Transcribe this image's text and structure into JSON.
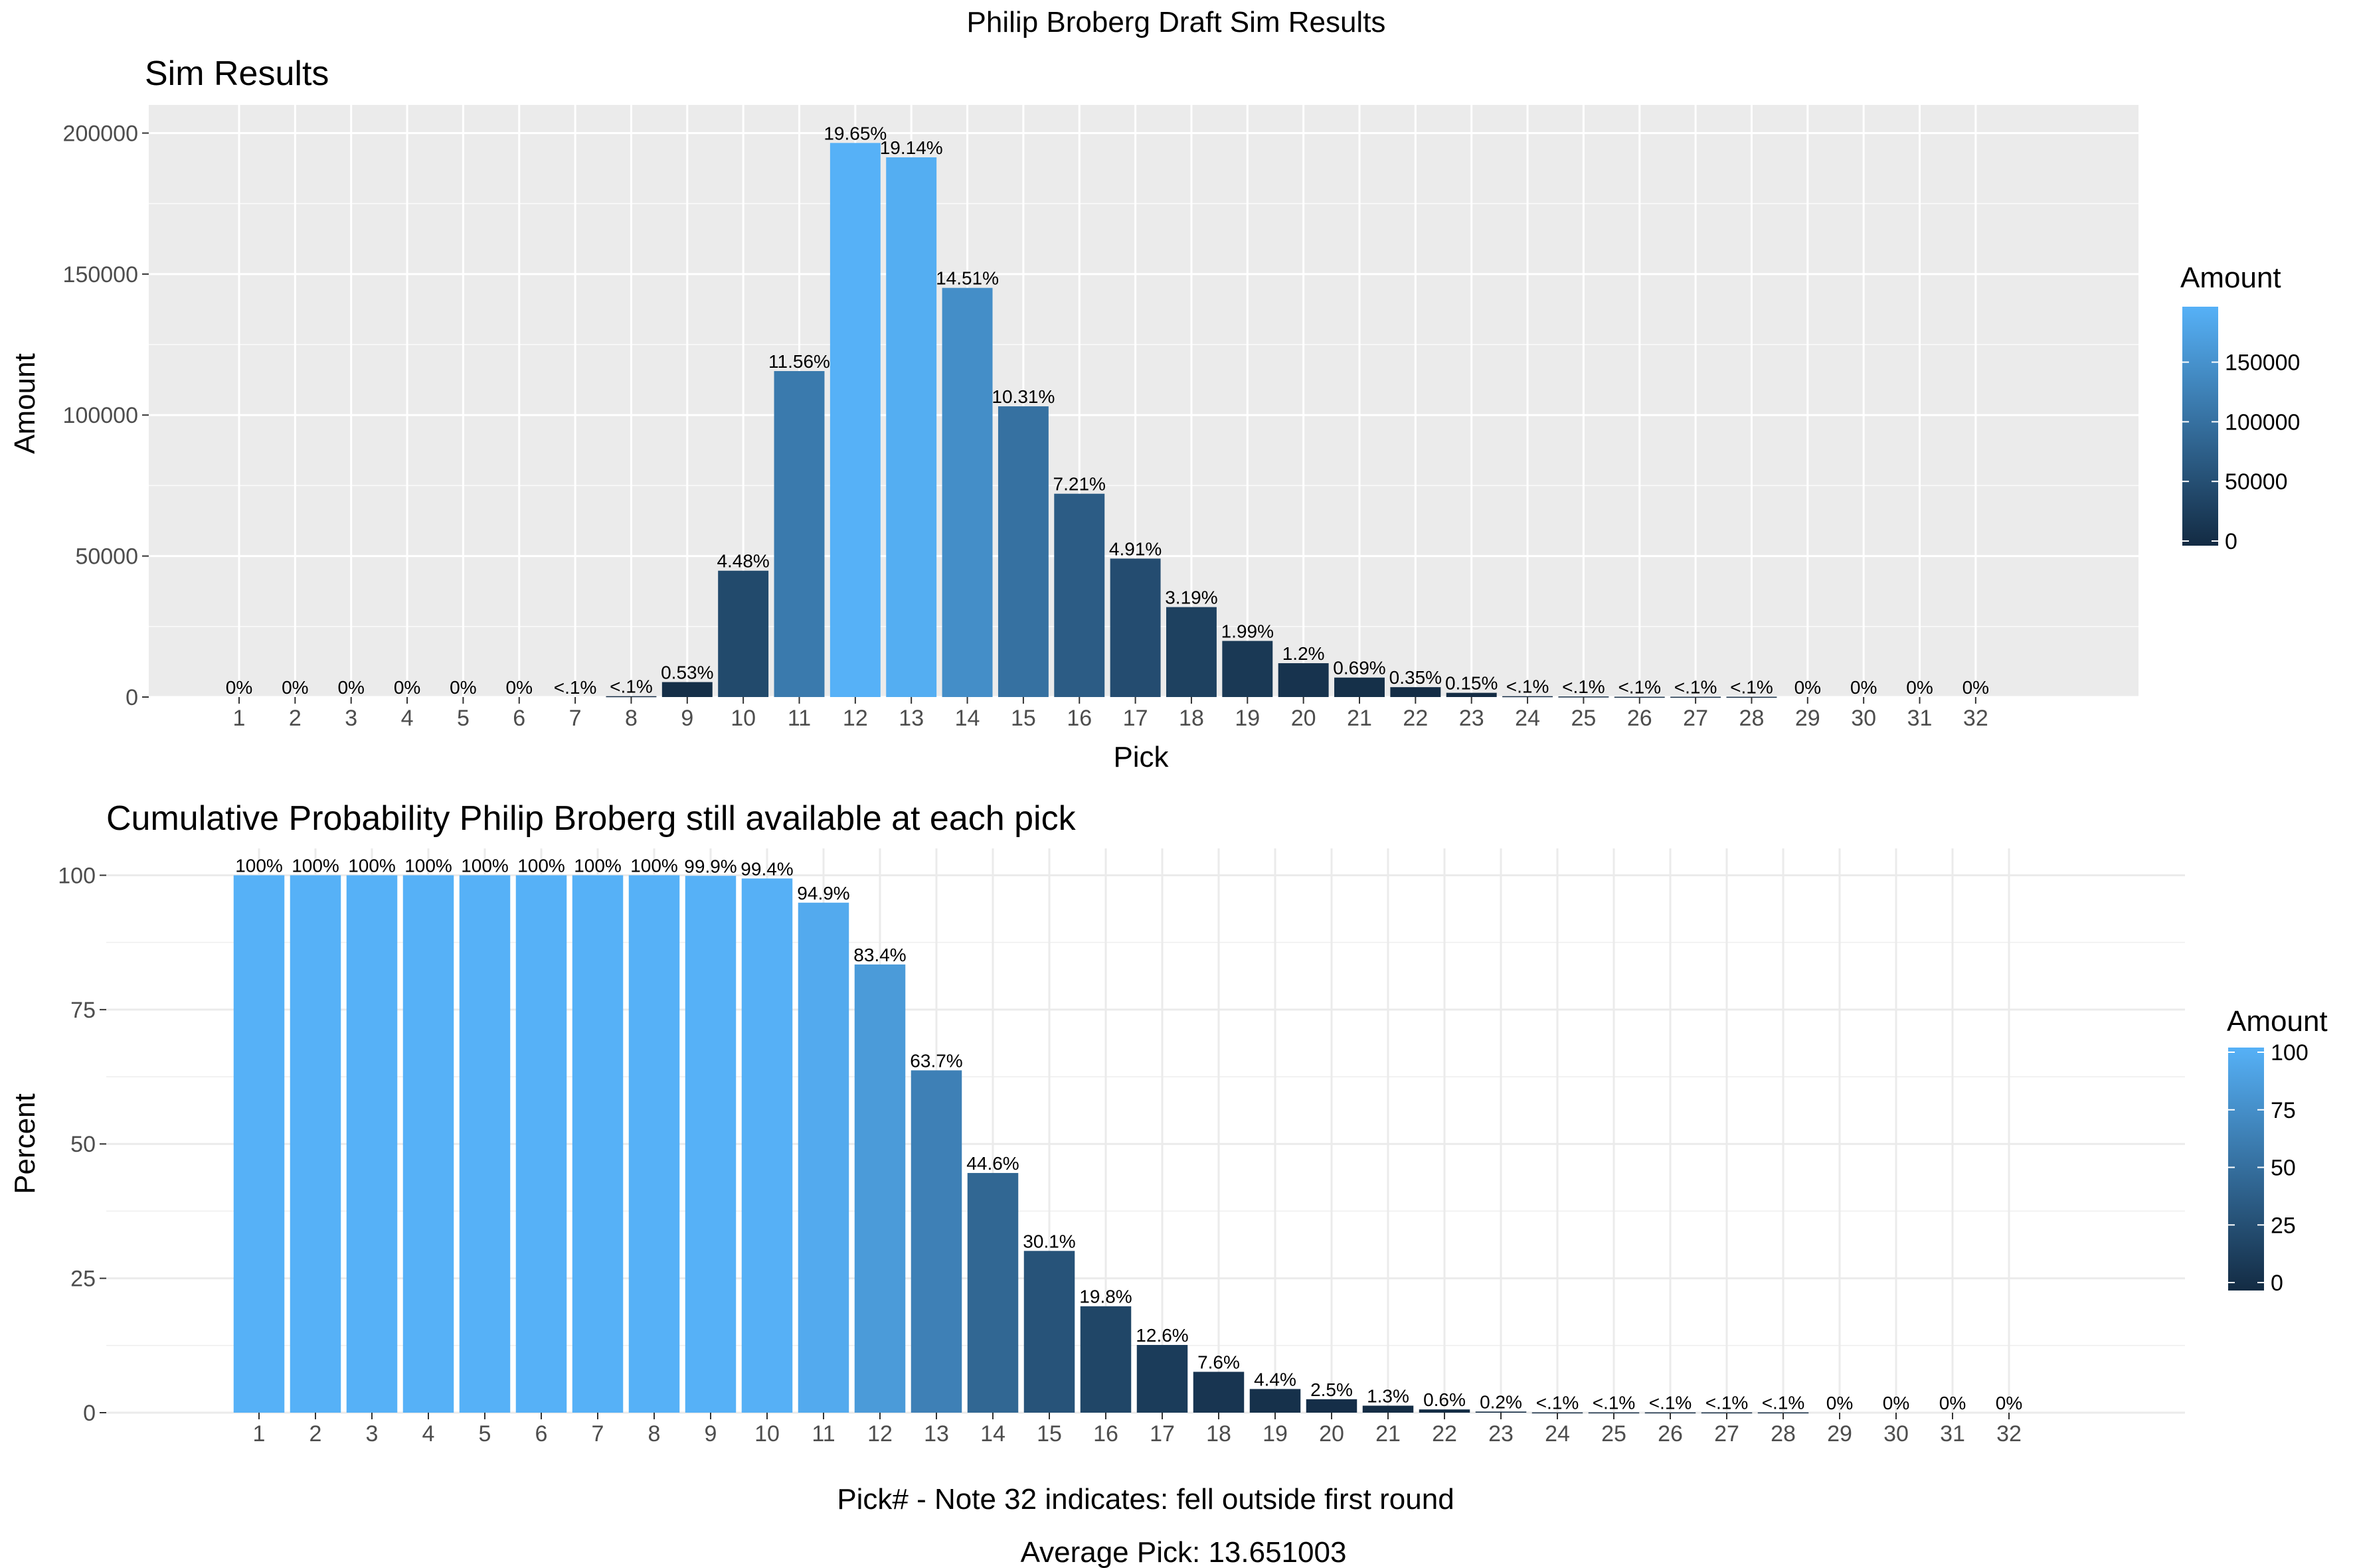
{
  "page_title": "Philip Broberg Draft Sim Results",
  "footer": "Average Pick: 13.651003",
  "colors": {
    "panel_bg": "#EBEBEB",
    "grid_major": "#FFFFFF",
    "gradient_low": "#132B43",
    "gradient_high": "#56B1F7",
    "text_dark": "#000000",
    "axis_text": "#4D4D4D"
  },
  "chart_data": [
    {
      "type": "bar",
      "title": "Sim Results",
      "xlabel": "Pick",
      "ylabel": "Amount",
      "ylim": [
        0,
        210000
      ],
      "y_ticks": [
        0,
        50000,
        100000,
        150000,
        200000
      ],
      "y_tick_labels": [
        "0",
        "50000",
        "100000",
        "150000",
        "200000"
      ],
      "background": "gray panel with white grid",
      "categories": [
        "1",
        "2",
        "3",
        "4",
        "5",
        "6",
        "7",
        "8",
        "9",
        "10",
        "11",
        "12",
        "13",
        "14",
        "15",
        "16",
        "17",
        "18",
        "19",
        "20",
        "21",
        "22",
        "23",
        "24",
        "25",
        "26",
        "27",
        "28",
        "29",
        "30",
        "31",
        "32"
      ],
      "values": [
        0,
        0,
        0,
        0,
        0,
        0,
        0,
        300,
        5300,
        44800,
        115600,
        196500,
        191400,
        145100,
        103100,
        72100,
        49100,
        31900,
        19900,
        12000,
        6900,
        3500,
        1500,
        300,
        200,
        100,
        100,
        100,
        0,
        0,
        0,
        0
      ],
      "labels": [
        "0%",
        "0%",
        "0%",
        "0%",
        "0%",
        "0%",
        "<.1%",
        "<.1%",
        "0.53%",
        "4.48%",
        "11.56%",
        "19.65%",
        "19.14%",
        "14.51%",
        "10.31%",
        "7.21%",
        "4.91%",
        "3.19%",
        "1.99%",
        "1.2%",
        "0.69%",
        "0.35%",
        "0.15%",
        "<.1%",
        "<.1%",
        "<.1%",
        "<.1%",
        "<.1%",
        "0%",
        "0%",
        "0%",
        "0%"
      ],
      "legend": {
        "title": "Amount",
        "position": "right",
        "range": [
          0,
          196500
        ],
        "ticks": [
          0,
          50000,
          100000,
          150000
        ],
        "tick_labels": [
          "0",
          "50000",
          "100000",
          "150000"
        ]
      }
    },
    {
      "type": "bar",
      "title": "Cumulative Probability Philip Broberg still available at each pick",
      "xlabel": "Pick# - Note 32 indicates: fell outside first round",
      "ylabel": "Percent",
      "ylim": [
        0,
        105
      ],
      "y_ticks": [
        0,
        25,
        50,
        75,
        100
      ],
      "y_tick_labels": [
        "0",
        "25",
        "50",
        "75",
        "100"
      ],
      "background": "white panel with light gray grid",
      "categories": [
        "1",
        "2",
        "3",
        "4",
        "5",
        "6",
        "7",
        "8",
        "9",
        "10",
        "11",
        "12",
        "13",
        "14",
        "15",
        "16",
        "17",
        "18",
        "19",
        "20",
        "21",
        "22",
        "23",
        "24",
        "25",
        "26",
        "27",
        "28",
        "29",
        "30",
        "31",
        "32"
      ],
      "values": [
        100,
        100,
        100,
        100,
        100,
        100,
        100,
        100,
        99.9,
        99.4,
        94.9,
        83.4,
        63.7,
        44.6,
        30.1,
        19.8,
        12.6,
        7.6,
        4.4,
        2.5,
        1.3,
        0.6,
        0.2,
        0.05,
        0.05,
        0.05,
        0.05,
        0.05,
        0,
        0,
        0,
        0
      ],
      "labels": [
        "100%",
        "100%",
        "100%",
        "100%",
        "100%",
        "100%",
        "100%",
        "100%",
        "99.9%",
        "99.4%",
        "94.9%",
        "83.4%",
        "63.7%",
        "44.6%",
        "30.1%",
        "19.8%",
        "12.6%",
        "7.6%",
        "4.4%",
        "2.5%",
        "1.3%",
        "0.6%",
        "0.2%",
        "<.1%",
        "<.1%",
        "<.1%",
        "<.1%",
        "<.1%",
        "0%",
        "0%",
        "0%",
        "0%"
      ],
      "legend": {
        "title": "Amount",
        "position": "right",
        "range": [
          0,
          100
        ],
        "ticks": [
          0,
          25,
          50,
          75,
          100
        ],
        "tick_labels": [
          "0",
          "25",
          "50",
          "75",
          "100"
        ]
      }
    }
  ]
}
